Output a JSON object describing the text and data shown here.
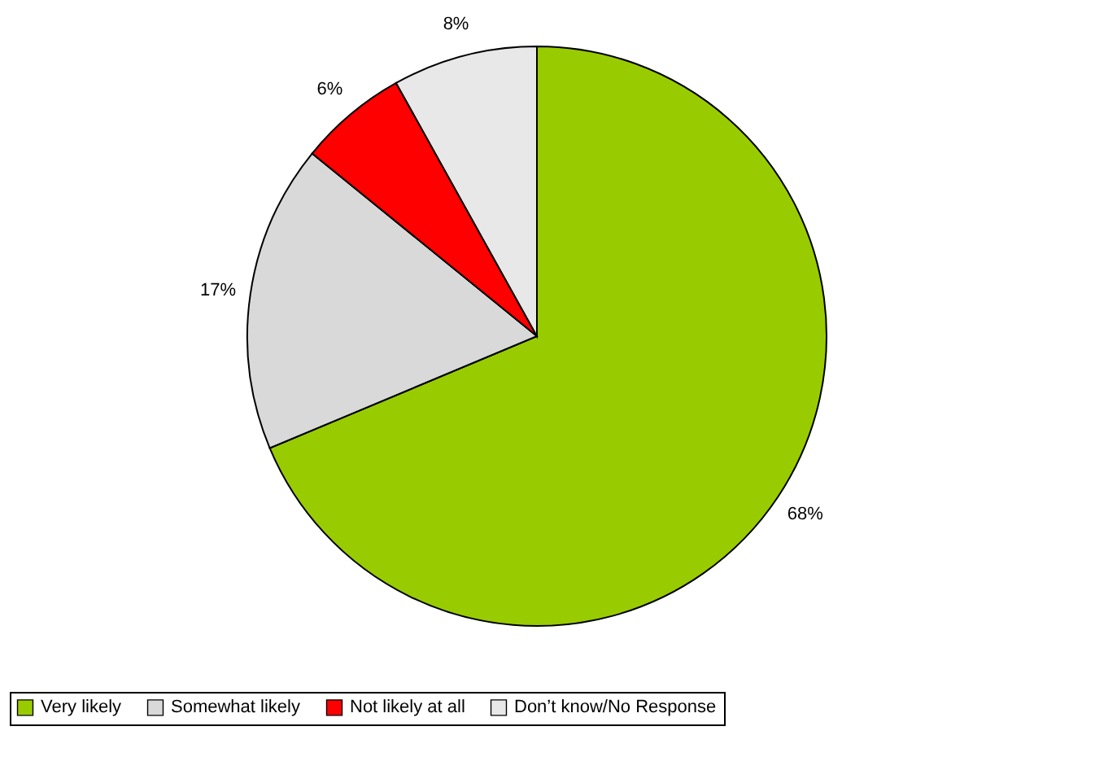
{
  "chart_data": {
    "type": "pie",
    "categories": [
      "Very likely",
      "Somewhat likely",
      "Not likely at all",
      "Don’t know/No Response"
    ],
    "values": [
      68,
      17,
      6,
      8
    ],
    "value_labels": [
      "68%",
      "17%",
      "6%",
      "8%"
    ],
    "colors": [
      "#99cc00",
      "#d9d9d9",
      "#ff0000",
      "#e8e8e8"
    ],
    "legend": "bottom"
  }
}
